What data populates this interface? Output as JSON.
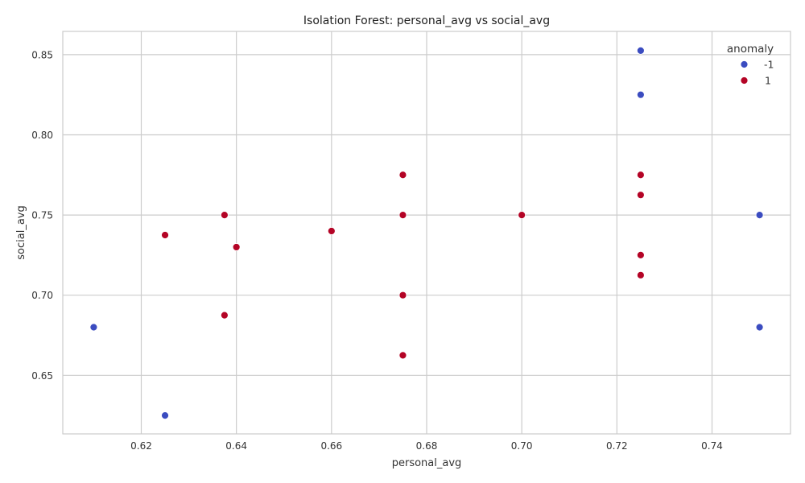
{
  "chart_data": {
    "type": "scatter",
    "title": "Isolation Forest: personal_avg vs social_avg",
    "xlabel": "personal_avg",
    "ylabel": "social_avg",
    "xlim": [
      0.6035,
      0.7565
    ],
    "ylim": [
      0.6135,
      0.8645
    ],
    "xticks": [
      "0.62",
      "0.64",
      "0.66",
      "0.68",
      "0.70",
      "0.72",
      "0.74"
    ],
    "yticks": [
      "0.65",
      "0.70",
      "0.75",
      "0.80",
      "0.85"
    ],
    "grid": true,
    "legend": {
      "title": "anomaly",
      "position": "top-right"
    },
    "series": [
      {
        "name": "-1",
        "color": "#3b4cc0",
        "points": [
          [
            0.61,
            0.68
          ],
          [
            0.625,
            0.625
          ],
          [
            0.725,
            0.8525
          ],
          [
            0.725,
            0.825
          ],
          [
            0.75,
            0.75
          ],
          [
            0.75,
            0.68
          ]
        ]
      },
      {
        "name": "1",
        "color": "#b40426",
        "points": [
          [
            0.625,
            0.7375
          ],
          [
            0.6375,
            0.75
          ],
          [
            0.6375,
            0.6875
          ],
          [
            0.64,
            0.73
          ],
          [
            0.66,
            0.74
          ],
          [
            0.675,
            0.775
          ],
          [
            0.675,
            0.75
          ],
          [
            0.675,
            0.7
          ],
          [
            0.675,
            0.6625
          ],
          [
            0.7,
            0.75
          ],
          [
            0.725,
            0.775
          ],
          [
            0.725,
            0.7625
          ],
          [
            0.725,
            0.725
          ],
          [
            0.725,
            0.7125
          ]
        ]
      }
    ]
  }
}
